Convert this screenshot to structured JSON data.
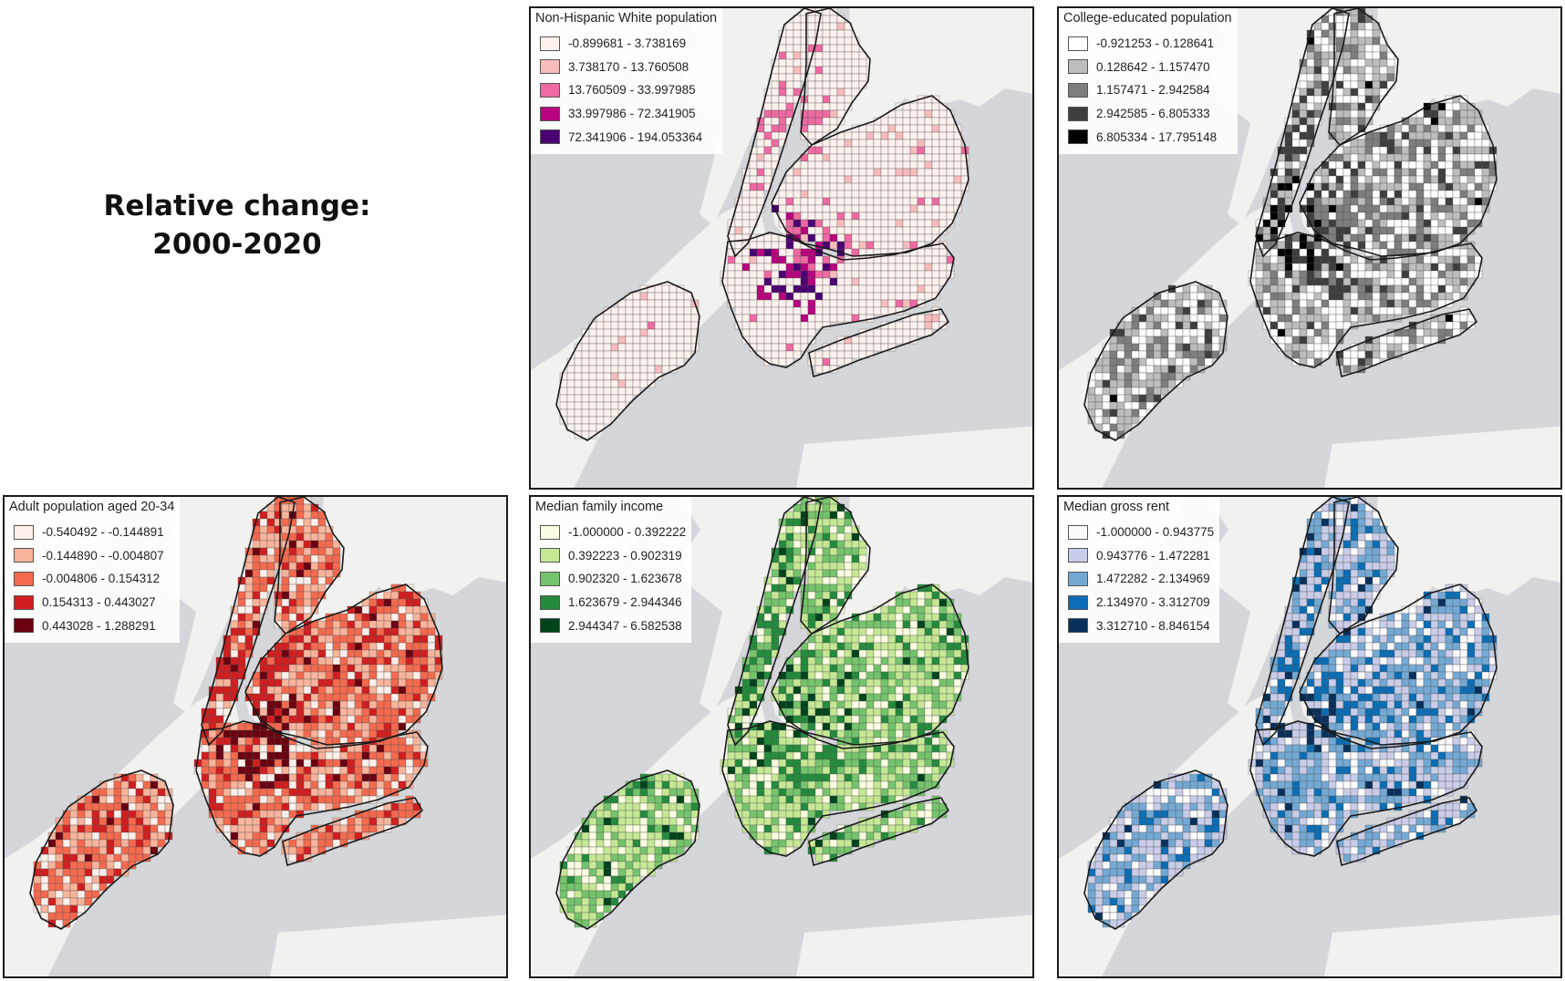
{
  "title": {
    "line1": "Relative change:",
    "line2": "2000-2020"
  },
  "panels": [
    {
      "id": "white",
      "title": "Non-Hispanic White population",
      "background": "#d4d6d9",
      "classes": [
        {
          "label": "-0.899681 - 3.738169",
          "color": "#fdf1ee"
        },
        {
          "label": "3.738170 - 13.760508",
          "color": "#f8bcbc"
        },
        {
          "label": "13.760509 - 33.997985",
          "color": "#ef6aa2"
        },
        {
          "label": "33.997986 - 72.341905",
          "color": "#b8037f"
        },
        {
          "label": "72.341906 - 194.053364",
          "color": "#4b0072"
        }
      ]
    },
    {
      "id": "college",
      "title": "College-educated population",
      "background": "#d4d6d9",
      "classes": [
        {
          "label": "-0.921253 - 0.128641",
          "color": "#ffffff"
        },
        {
          "label": "0.128642 - 1.157470",
          "color": "#bdbdbd"
        },
        {
          "label": "1.157471 - 2.942584",
          "color": "#7e7e7e"
        },
        {
          "label": "2.942585 - 6.805333",
          "color": "#3e3e3e"
        },
        {
          "label": "6.805334 - 17.795148",
          "color": "#000000"
        }
      ]
    },
    {
      "id": "adult",
      "title": "Adult population aged 20-34",
      "background": "#d4d6d9",
      "classes": [
        {
          "label": "-0.540492 - -0.144891",
          "color": "#fdf0ea"
        },
        {
          "label": "-0.144890 - -0.004807",
          "color": "#f9b49c"
        },
        {
          "label": "-0.004806 - 0.154312",
          "color": "#f46a4f"
        },
        {
          "label": "0.154313 - 0.443027",
          "color": "#d11e20"
        },
        {
          "label": "0.443028 - 1.288291",
          "color": "#6b0010"
        }
      ]
    },
    {
      "id": "income",
      "title": "Median family income",
      "background": "#d4d6d9",
      "classes": [
        {
          "label": "-1.000000 - 0.392222",
          "color": "#fbfee0"
        },
        {
          "label": "0.392223 - 0.902319",
          "color": "#c6e895"
        },
        {
          "label": "0.902320 - 1.623678",
          "color": "#75c46d"
        },
        {
          "label": "1.623679 - 2.944346",
          "color": "#248b3d"
        },
        {
          "label": "2.944347 - 6.582538",
          "color": "#00441b"
        }
      ]
    },
    {
      "id": "rent",
      "title": "Median gross rent",
      "background": "#d4d6d9",
      "classes": [
        {
          "label": "-1.000000 - 0.943775",
          "color": "#fbfbfe"
        },
        {
          "label": "0.943776 - 1.472281",
          "color": "#c9cde9"
        },
        {
          "label": "1.472282 - 2.134969",
          "color": "#74a9d4"
        },
        {
          "label": "2.134970 - 3.312709",
          "color": "#0c6eb4"
        },
        {
          "label": "3.312710 - 8.846154",
          "color": "#08305b"
        }
      ]
    }
  ]
}
